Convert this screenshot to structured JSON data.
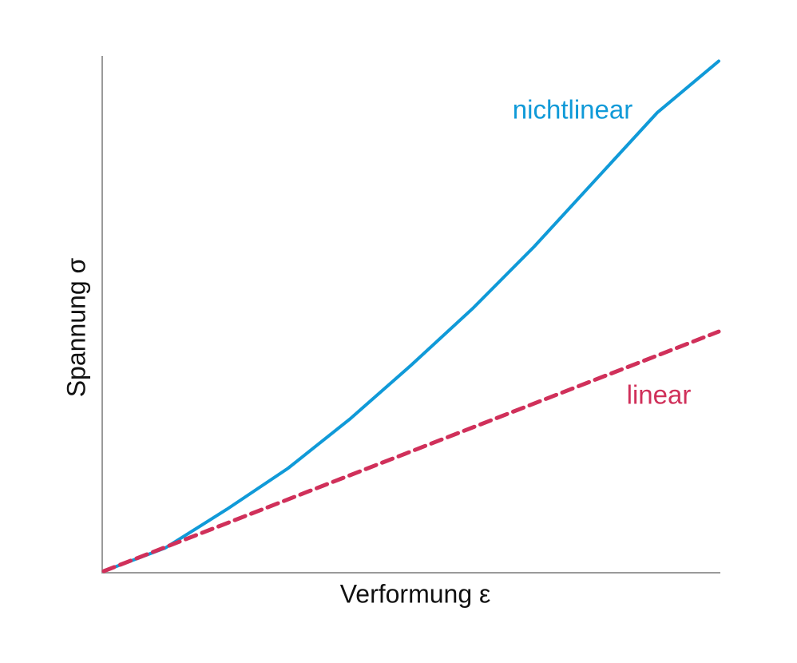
{
  "chart_data": {
    "type": "line",
    "x_label": "Verformung ε",
    "y_label": "Spannung σ",
    "xlim": [
      0,
      10
    ],
    "ylim": [
      0,
      10
    ],
    "series": [
      {
        "name": "nichtlinear",
        "color": "#109ad8",
        "dash": false,
        "x": [
          0,
          1,
          2,
          3,
          4,
          5,
          6,
          7,
          8,
          9,
          10
        ],
        "values": [
          0,
          0.45,
          1.2,
          2.0,
          2.95,
          4.0,
          5.1,
          6.3,
          7.6,
          8.9,
          9.9
        ]
      },
      {
        "name": "linear",
        "color": "#d0305a",
        "dash": true,
        "x": [
          0,
          10
        ],
        "values": [
          0,
          4.65
        ]
      }
    ]
  }
}
